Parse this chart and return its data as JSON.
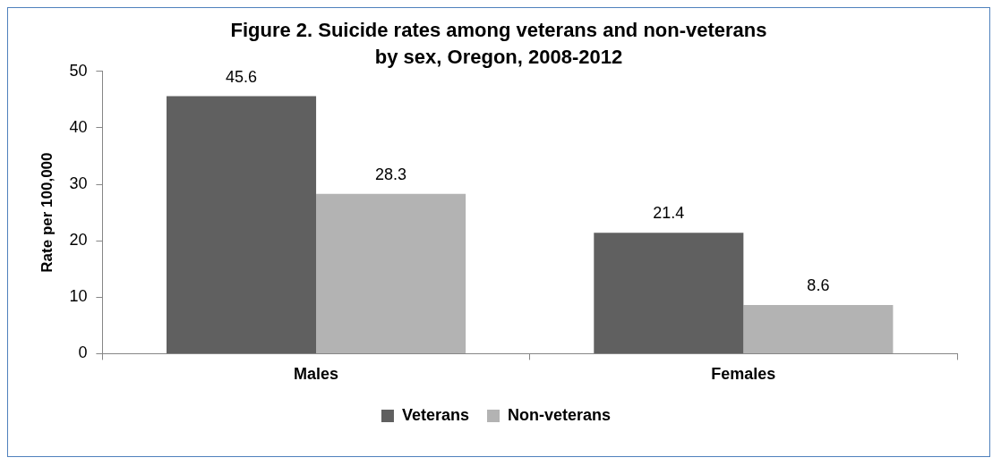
{
  "chart_data": {
    "type": "bar",
    "title": "Figure 2. Suicide rates among veterans and non-veterans by sex, Oregon, 2008-2012",
    "ylabel": "Rate per 100,000",
    "categories": [
      "Males",
      "Females"
    ],
    "series": [
      {
        "name": "Veterans",
        "color": "#606060",
        "values": [
          45.6,
          21.4
        ]
      },
      {
        "name": "Non-veterans",
        "color": "#b3b3b3",
        "values": [
          28.3,
          8.6
        ]
      }
    ],
    "ylim": [
      0,
      50
    ],
    "yticks": [
      0,
      10,
      20,
      30,
      40,
      50
    ],
    "data_labels": true,
    "legend": "bottom"
  }
}
